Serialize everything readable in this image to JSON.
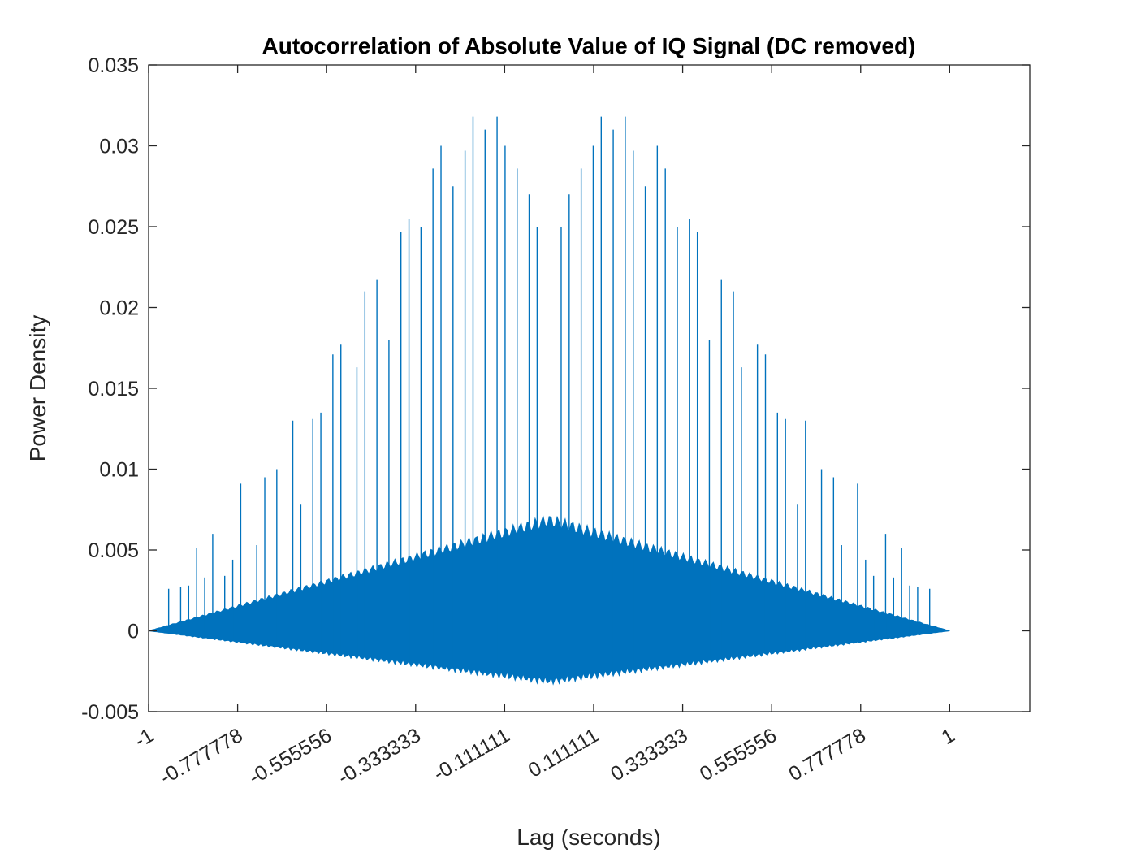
{
  "chart_data": {
    "type": "line",
    "title": "Autocorrelation of Absolute Value of IQ Signal (DC removed)",
    "xlabel": "Lag (seconds)",
    "ylabel": "Power Density",
    "xlim": [
      -1,
      1.2
    ],
    "ylim": [
      -0.005,
      0.035
    ],
    "x_ticks": [
      -1,
      -0.777778,
      -0.555556,
      -0.333333,
      -0.111111,
      0.111111,
      0.333333,
      0.555556,
      0.777778,
      1
    ],
    "x_tick_labels": [
      "-1",
      "-0.777778",
      "-0.555556",
      "-0.333333",
      "-0.111111",
      "0.111111",
      "0.333333",
      "0.555556",
      "0.777778",
      "1"
    ],
    "y_ticks": [
      -0.005,
      0,
      0.005,
      0.01,
      0.015,
      0.02,
      0.025,
      0.03,
      0.035
    ],
    "y_tick_labels": [
      "-0.005",
      "0",
      "0.005",
      "0.01",
      "0.015",
      "0.02",
      "0.025",
      "0.03",
      "0.035"
    ],
    "grid": false,
    "series_color": "#0072BD",
    "envelope": {
      "lag_range": [
        -1,
        1
      ],
      "dense_band_peak_at_zero": 0.0068,
      "negative_band_min_at_zero": -0.0031
    },
    "spikes": {
      "x": [
        -0.95,
        -0.92,
        -0.9,
        -0.88,
        -0.86,
        -0.84,
        -0.81,
        -0.79,
        -0.77,
        -0.73,
        -0.71,
        -0.68,
        -0.64,
        -0.62,
        -0.59,
        -0.57,
        -0.54,
        -0.52,
        -0.48,
        -0.46,
        -0.43,
        -0.4,
        -0.37,
        -0.35,
        -0.32,
        -0.29,
        -0.27,
        -0.24,
        -0.21,
        -0.19,
        -0.16,
        -0.13,
        -0.11,
        -0.08,
        -0.05,
        -0.03,
        0.03,
        0.05,
        0.08,
        0.11,
        0.13,
        0.16,
        0.19,
        0.21,
        0.24,
        0.27,
        0.29,
        0.32,
        0.35,
        0.37,
        0.4,
        0.43,
        0.46,
        0.48,
        0.52,
        0.54,
        0.57,
        0.59,
        0.62,
        0.64,
        0.68,
        0.71,
        0.73,
        0.77,
        0.79,
        0.81,
        0.84,
        0.86,
        0.88,
        0.9,
        0.92,
        0.95
      ],
      "y": [
        0.0026,
        0.0027,
        0.0028,
        0.0051,
        0.0033,
        0.006,
        0.0034,
        0.0044,
        0.0091,
        0.0053,
        0.0095,
        0.01,
        0.013,
        0.0078,
        0.0131,
        0.0135,
        0.0171,
        0.0177,
        0.0163,
        0.021,
        0.0217,
        0.018,
        0.0247,
        0.0255,
        0.025,
        0.0286,
        0.03,
        0.0275,
        0.0297,
        0.0318,
        0.031,
        0.0318,
        0.03,
        0.0286,
        0.027,
        0.025,
        0.025,
        0.027,
        0.0286,
        0.03,
        0.0318,
        0.031,
        0.0318,
        0.0297,
        0.0275,
        0.03,
        0.0286,
        0.025,
        0.0255,
        0.0247,
        0.018,
        0.0217,
        0.021,
        0.0163,
        0.0177,
        0.0171,
        0.0135,
        0.0131,
        0.0078,
        0.013,
        0.01,
        0.0095,
        0.0053,
        0.0091,
        0.0044,
        0.0034,
        0.006,
        0.0033,
        0.0051,
        0.0028,
        0.0027,
        0.0026
      ]
    }
  }
}
